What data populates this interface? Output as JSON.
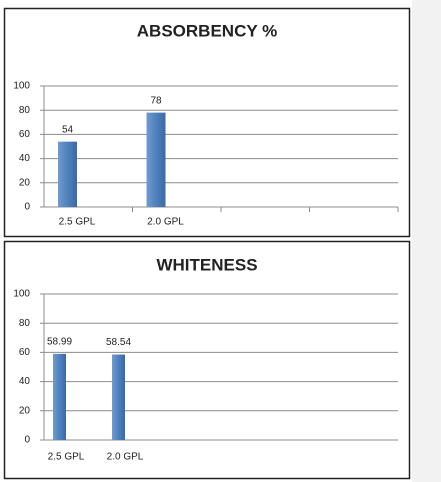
{
  "chart_data": [
    {
      "type": "bar",
      "title": "ABSORBENCY %",
      "categories": [
        "2.5 GPL",
        "2.0 GPL"
      ],
      "values": [
        54,
        78
      ],
      "color": "#4f81bd",
      "ylim": [
        0,
        100
      ],
      "yticks": [
        0,
        20,
        40,
        60,
        80,
        100
      ],
      "grid": true
    },
    {
      "type": "bar",
      "title": "WHITENESS",
      "categories": [
        "2.5 GPL",
        "2.0 GPL"
      ],
      "values": [
        58.99,
        58.54
      ],
      "color": "#4f81bd",
      "ylim": [
        0,
        100
      ],
      "yticks": [
        0,
        20,
        40,
        60,
        80,
        100
      ],
      "grid": true
    }
  ]
}
